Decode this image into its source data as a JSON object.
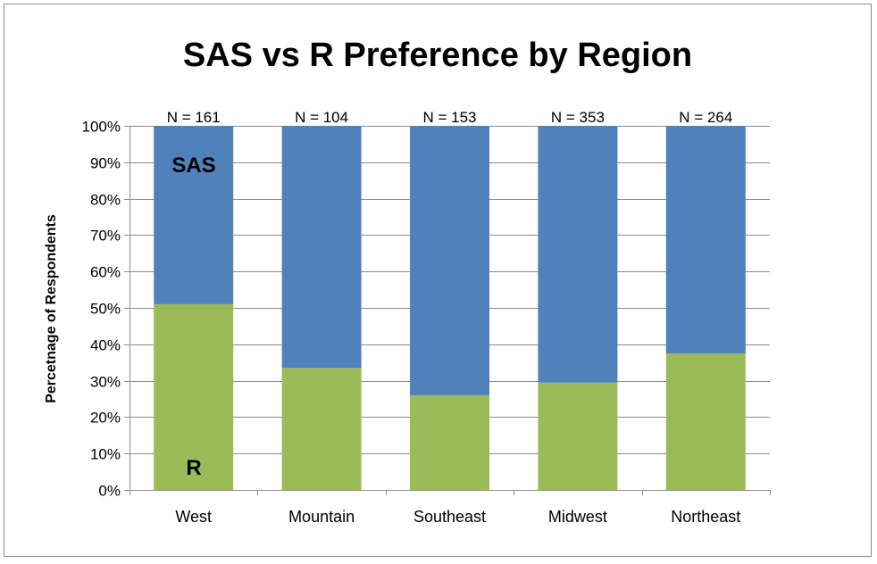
{
  "chart_data": {
    "type": "bar",
    "stacked": true,
    "title": "SAS vs R Preference by Region",
    "xlabel": "",
    "ylabel": "Percetnage of Respondents",
    "ylim": [
      0,
      100
    ],
    "yticks": [
      "0%",
      "10%",
      "20%",
      "30%",
      "40%",
      "50%",
      "60%",
      "70%",
      "80%",
      "90%",
      "100%"
    ],
    "categories": [
      "West",
      "Mountain",
      "Southeast",
      "Midwest",
      "Northeast"
    ],
    "sample_sizes": [
      "N = 161",
      "N = 104",
      "N = 153",
      "N = 353",
      "N = 264"
    ],
    "series": [
      {
        "name": "R",
        "values": [
          51,
          33.5,
          26,
          29.5,
          37.5
        ],
        "color": "#9bbb59"
      },
      {
        "name": "SAS",
        "values": [
          49,
          66.5,
          74,
          70.5,
          62.5
        ],
        "color": "#4f81bd"
      }
    ],
    "annotations": [
      "SAS",
      "R"
    ],
    "grid": true,
    "legend": "none"
  }
}
